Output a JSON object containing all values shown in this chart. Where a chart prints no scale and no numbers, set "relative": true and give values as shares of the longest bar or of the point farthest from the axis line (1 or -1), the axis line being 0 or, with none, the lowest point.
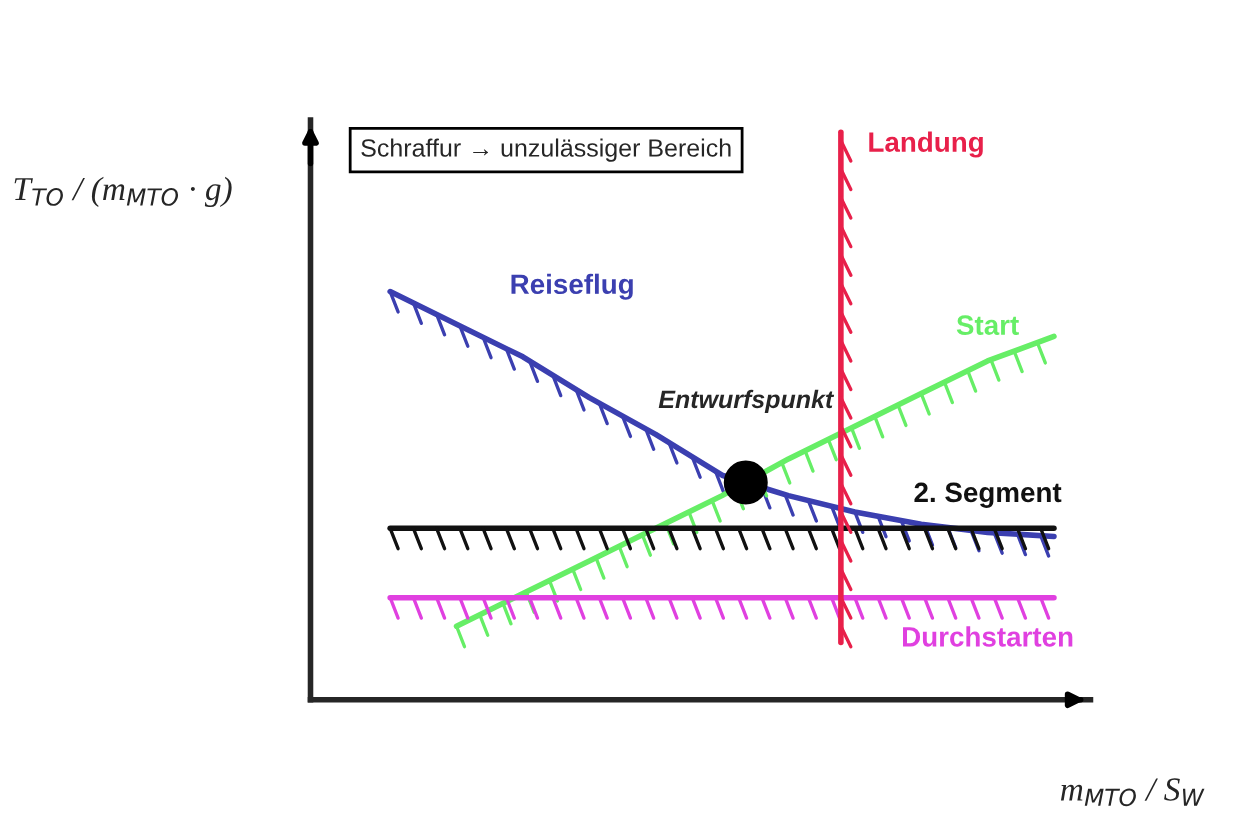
{
  "chart_data": {
    "type": "line",
    "relative": true,
    "xlabel": "m$_{MTO}$ / S$_{W}$",
    "ylabel": "T$_{TO}$ / (m$_{MTO}$ · g)",
    "categories": [
      null,
      null,
      null,
      null,
      null,
      null,
      null,
      null,
      null,
      null,
      null
    ],
    "series": [
      {
        "name": "Reiseflug",
        "color": "#3b3fb0",
        "values": [
          1,
          0.92,
          0.84,
          0.74,
          0.65,
          0.55,
          0.5,
          0.46,
          0.43,
          0.41,
          0.4
        ]
      },
      {
        "name": "Start",
        "color": "#66ee66",
        "values": [
          null,
          0.18,
          0.26,
          0.34,
          0.42,
          0.5,
          0.59,
          0.67,
          0.75,
          0.83,
          0.89
        ]
      },
      {
        "name": "2. Segment",
        "color": "#111111",
        "values": [
          0.42,
          0.42,
          0.42,
          0.42,
          0.42,
          0.42,
          0.42,
          0.42,
          0.42,
          0.42,
          0.42
        ]
      },
      {
        "name": "Durchstarten",
        "color": "#e040e0",
        "values": [
          0.25,
          0.25,
          0.25,
          0.25,
          0.25,
          0.25,
          0.25,
          0.25,
          0.25,
          0.25,
          0.25
        ]
      }
    ],
    "annotations": [
      "Schraffur → unzulässiger Bereich",
      "Entwurfspunkt",
      "Landung"
    ],
    "legend": false,
    "grid": false,
    "marker": "none"
  }
}
